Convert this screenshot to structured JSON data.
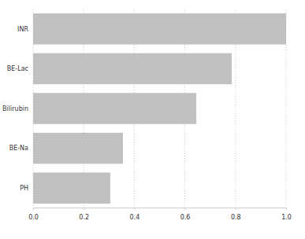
{
  "chart_data": {
    "type": "bar",
    "orientation": "horizontal",
    "categories": [
      "INR",
      "BE-Lac",
      "Bilirubin",
      "BE-Na",
      "PH"
    ],
    "values": [
      1.0,
      0.785,
      0.645,
      0.355,
      0.305
    ],
    "color": "#c0c0c0",
    "xlim": [
      0,
      1.0
    ],
    "xticks": [
      {
        "value": 0,
        "label": "0.0"
      },
      0.2,
      0.4,
      0.6,
      0.8,
      {
        "value": 1.0,
        "label": "1.0"
      }
    ],
    "grid": true
  }
}
